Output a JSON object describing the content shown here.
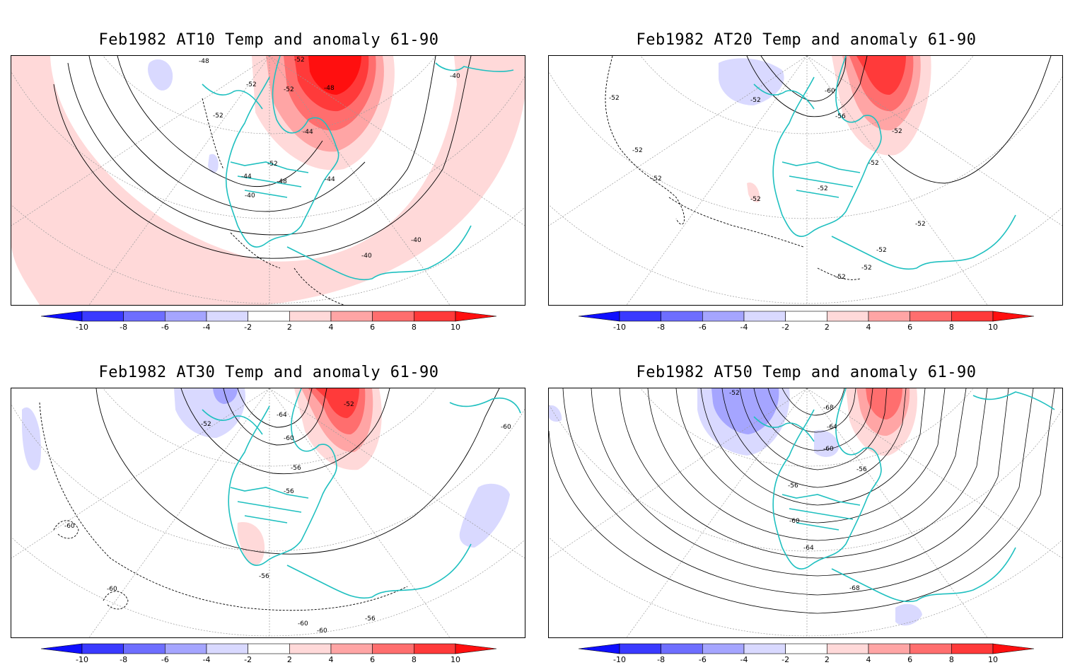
{
  "panels": [
    {
      "title": "Feb1982 AT10 Temp and anomaly 61-90",
      "contour_labels": [
        "-48",
        "-52",
        "-52",
        "-52",
        "-48",
        "-52",
        "-44",
        "-52",
        "-44",
        "-48",
        "-40",
        "-44",
        "-40",
        "-40",
        "-40"
      ]
    },
    {
      "title": "Feb1982 AT20 Temp and anomaly 61-90",
      "contour_labels": [
        "-52",
        "-52",
        "-60",
        "-56",
        "-52",
        "-52",
        "-52",
        "-52",
        "-52",
        "-52",
        "-52",
        "-52",
        "-52",
        "-52"
      ]
    },
    {
      "title": "Feb1982 AT30 Temp and anomaly 61-90",
      "contour_labels": [
        "-52",
        "-52",
        "-64",
        "-60",
        "-56",
        "-56",
        "-60",
        "-60",
        "-60",
        "-56",
        "-60",
        "-56",
        "-60"
      ]
    },
    {
      "title": "Feb1982 AT50 Temp and anomaly 61-90",
      "contour_labels": [
        "-52",
        "-68",
        "-64",
        "-60",
        "-56",
        "-56",
        "-60",
        "-64",
        "-68"
      ]
    }
  ],
  "colorbar": {
    "ticks": [
      "-10",
      "-8",
      "-6",
      "-4",
      "-2",
      "2",
      "4",
      "6",
      "8",
      "10"
    ],
    "colors": [
      "#0f0fff",
      "#3a3aff",
      "#6e6eff",
      "#a5a5ff",
      "#d9d9ff",
      "#ffffff",
      "#ffd9d9",
      "#ffa5a5",
      "#ff6e6e",
      "#ff3a3a",
      "#ff0f0f"
    ]
  },
  "colors": {
    "coast": "#20c0c0",
    "contour": "#000000",
    "grid": "#999999"
  }
}
